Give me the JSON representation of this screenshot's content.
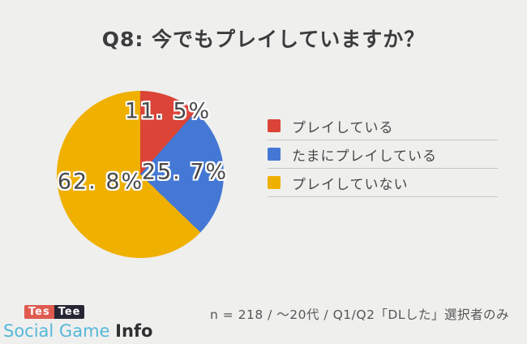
{
  "chart_data": {
    "type": "pie",
    "title": "Q8: 今でもプレイしていますか？",
    "categories": [
      "プレイしている",
      "たまにプレイしている",
      "プレイしていない"
    ],
    "values": [
      11.5,
      25.7,
      62.8
    ],
    "labels_display": [
      "11. 5%",
      "25. 7%",
      "62. 8%"
    ],
    "colors": [
      "#db4437",
      "#4478d4",
      "#efb000"
    ],
    "start_angle_deg": 0,
    "direction": "clockwise",
    "legend_position": "right",
    "legend_divider_color": "#c6c6c6",
    "label_style": "dark text with white outline inside slices"
  },
  "legend": {
    "items": [
      {
        "label": "プレイしている",
        "color": "#db4437"
      },
      {
        "label": "たまにプレイしている",
        "color": "#4478d4"
      },
      {
        "label": "プレイしていない",
        "color": "#efb000"
      }
    ]
  },
  "footnote": "n = 218 / ～20代 / Q1/Q2「DLした」選択者のみ",
  "branding": {
    "testee_left": "Tes",
    "testee_right": "Tee",
    "testee_left_bg": "#e05a50",
    "testee_right_bg": "#262636",
    "site_light": "Social Game ",
    "site_bold": "Info",
    "site_light_color": "#56b8d9",
    "site_bold_color": "#2f2f2f"
  },
  "colors": {
    "background": "#efefee",
    "title_text": "#3c3c3c",
    "footnote_text": "#575757",
    "legend_text": "#474747"
  }
}
